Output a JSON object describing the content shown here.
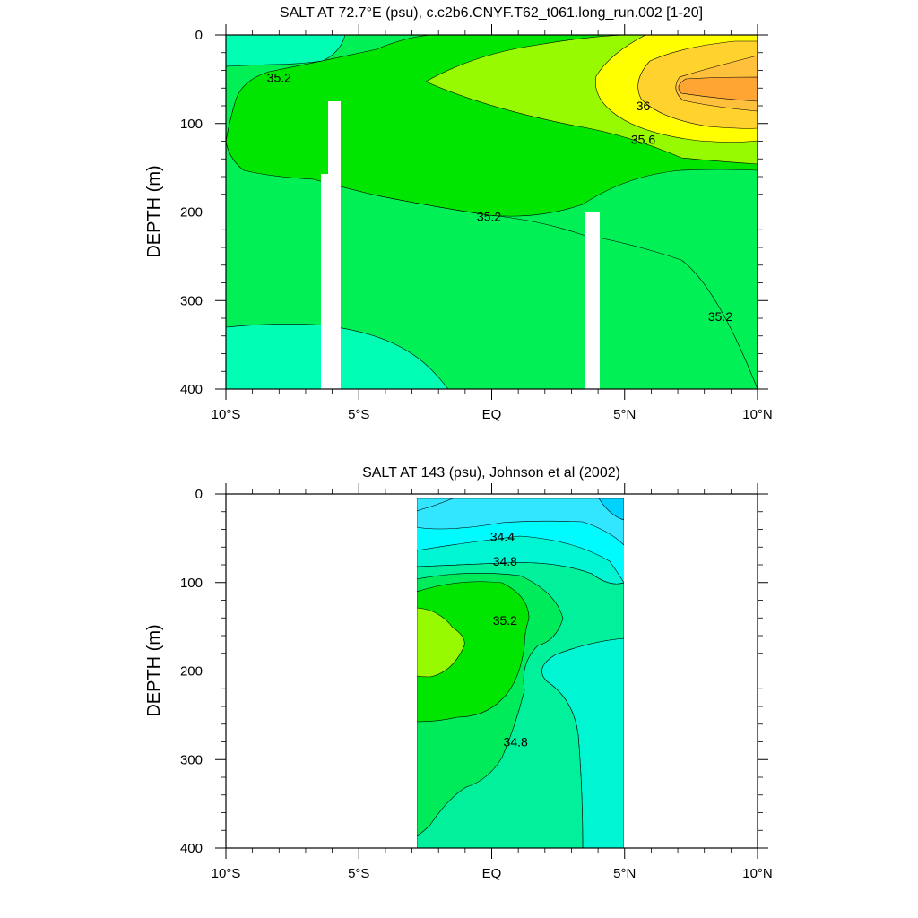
{
  "chart_data": [
    {
      "type": "contour",
      "title": "SALT AT  72.7°E (psu), c.c2b6.CNYF.T62_t061.long_run.002 [1-20]",
      "ylabel": "DEPTH (m)",
      "xlim": [
        -10,
        10
      ],
      "ylim": [
        400,
        0
      ],
      "x_ticks": [
        {
          "value": -10,
          "label": "10°S"
        },
        {
          "value": -5,
          "label": "5°S"
        },
        {
          "value": 0,
          "label": "EQ"
        },
        {
          "value": 5,
          "label": "5°N"
        },
        {
          "value": 10,
          "label": "10°N"
        }
      ],
      "y_ticks": [
        0,
        100,
        200,
        300,
        400
      ],
      "contour_labels": [
        {
          "text": "35.2",
          "x": -8,
          "y": 48
        },
        {
          "text": "36",
          "x": 5.7,
          "y": 80
        },
        {
          "text": "35.6",
          "x": 5.7,
          "y": 118
        },
        {
          "text": "35.2",
          "x": -0.1,
          "y": 205
        },
        {
          "text": "35.2",
          "x": 8.6,
          "y": 318
        }
      ],
      "missing_columns": [
        {
          "x_from": -6.3,
          "x_to": -5.6,
          "depth_from": 157,
          "depth_to": 400
        },
        {
          "x_from": -6.0,
          "x_to": -5.6,
          "depth_from": 75,
          "depth_to": 157
        },
        {
          "x_from": 3.6,
          "x_to": 4.1,
          "depth_from": 200,
          "depth_to": 400
        }
      ],
      "fill_colors": {
        "34.8-35.0": "#00ffb4",
        "35.0-35.2": "#00f056",
        "35.2-35.4": "#00e600",
        "35.4-35.6": "#97fa00",
        "35.6-35.8": "#ffff00",
        "35.8-36.0": "#ffd22d",
        "36.0-36.2": "#ffc03c",
        ">36.2": "#ffa533"
      }
    },
    {
      "type": "contour",
      "title": "SALT AT 143 (psu), Johnson et al (2002)",
      "ylabel": "DEPTH (m)",
      "xlim": [
        -10,
        10
      ],
      "ylim": [
        400,
        0
      ],
      "x_ticks": [
        {
          "value": -10,
          "label": "10°S"
        },
        {
          "value": -5,
          "label": "5°S"
        },
        {
          "value": 0,
          "label": "EQ"
        },
        {
          "value": 5,
          "label": "5°N"
        },
        {
          "value": 10,
          "label": "10°N"
        }
      ],
      "y_ticks": [
        0,
        100,
        200,
        300,
        400
      ],
      "data_extent": {
        "x": [
          -2.8,
          5
        ],
        "depth": [
          5,
          400
        ]
      },
      "contour_labels": [
        {
          "text": "34.4",
          "x": 0.4,
          "y": 48
        },
        {
          "text": "34.8",
          "x": 0.5,
          "y": 76
        },
        {
          "text": "35.2",
          "x": 0.5,
          "y": 143
        },
        {
          "text": "34.8",
          "x": 0.9,
          "y": 280
        }
      ],
      "fill_colors": {
        "<34.2": "#00d2ff",
        "34.2-34.4": "#32e6ff",
        "34.4-34.6": "#00fbff",
        "34.6-34.8": "#00f5d2",
        "34.8-35.0": "#00f09b",
        "35.0-35.2": "#00eb5a",
        "35.2-35.4": "#00e600",
        ">35.4": "#97fa00"
      }
    }
  ]
}
